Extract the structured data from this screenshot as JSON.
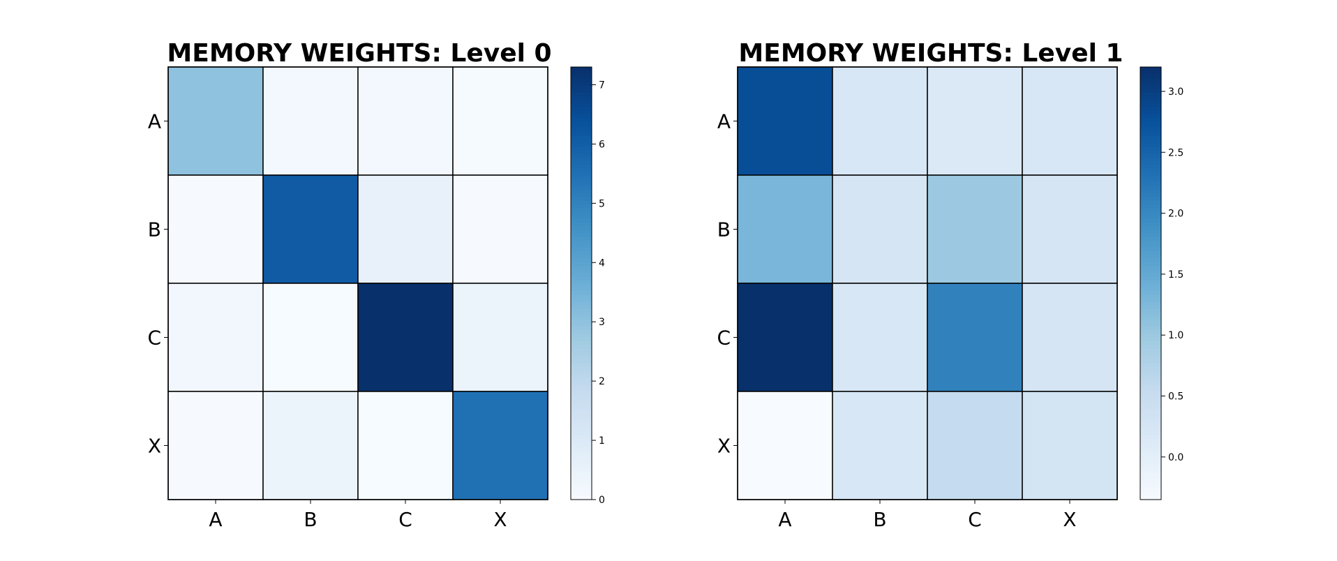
{
  "chart_data": [
    {
      "type": "heatmap",
      "title": "MEMORY WEIGHTS: Level 0",
      "row_labels": [
        "A",
        "B",
        "C",
        "X"
      ],
      "col_labels": [
        "A",
        "B",
        "C",
        "X"
      ],
      "values": [
        [
          3.0,
          0.15,
          0.15,
          0.08
        ],
        [
          0.05,
          6.1,
          0.55,
          0.05
        ],
        [
          0.2,
          0.02,
          7.3,
          0.45
        ],
        [
          0.03,
          0.4,
          0.02,
          5.5
        ]
      ],
      "colorbar": {
        "min": 0,
        "max": 7.3,
        "ticks": [
          "0",
          "1",
          "2",
          "3",
          "4",
          "5",
          "6",
          "7"
        ],
        "tick_values": [
          0,
          1,
          2,
          3,
          4,
          5,
          6,
          7
        ]
      },
      "colormap": "Blues",
      "grid": true
    },
    {
      "type": "heatmap",
      "title": "MEMORY WEIGHTS: Level 1",
      "row_labels": [
        "A",
        "B",
        "C",
        "X"
      ],
      "col_labels": [
        "A",
        "B",
        "C",
        "X"
      ],
      "values": [
        [
          2.8,
          0.2,
          0.15,
          0.2
        ],
        [
          1.3,
          0.25,
          1.0,
          0.25
        ],
        [
          3.2,
          0.2,
          2.1,
          0.25
        ],
        [
          -0.35,
          0.2,
          0.55,
          0.3
        ]
      ],
      "colorbar": {
        "min": -0.35,
        "max": 3.2,
        "ticks": [
          "0.0",
          "0.5",
          "1.0",
          "1.5",
          "2.0",
          "2.5",
          "3.0"
        ],
        "tick_values": [
          0,
          0.5,
          1,
          1.5,
          2,
          2.5,
          3
        ]
      },
      "colormap": "Blues",
      "grid": true
    }
  ]
}
